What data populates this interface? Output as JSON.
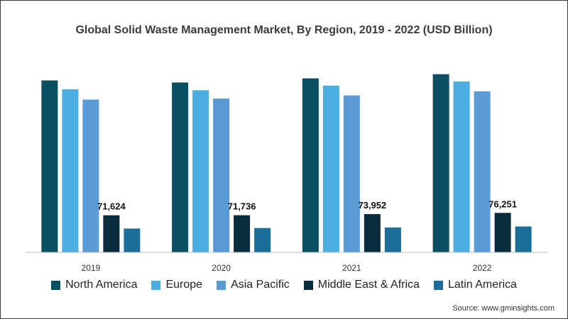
{
  "chart_data": {
    "type": "bar",
    "title": "Global Solid Waste Management Market, By Region, 2019 - 2022 (USD Billion)",
    "xlabel": "",
    "ylabel": "",
    "categories": [
      "2019",
      "2020",
      "2021",
      "2022"
    ],
    "series": [
      {
        "name": "North America",
        "color": "#0b4f63",
        "values": [
          332000,
          328000,
          336000,
          344000
        ]
      },
      {
        "name": "Europe",
        "color": "#4aaee0",
        "values": [
          315000,
          313000,
          322000,
          330000
        ]
      },
      {
        "name": "Asia Pacific",
        "color": "#5b9bd5",
        "values": [
          295000,
          297000,
          303000,
          311000
        ]
      },
      {
        "name": "Middle East & Africa",
        "color": "#0a2d3e",
        "values": [
          71624,
          71736,
          73952,
          76251
        ]
      },
      {
        "name": "Latin America",
        "color": "#1b6e99",
        "values": [
          46000,
          47000,
          48000,
          50000
        ]
      }
    ],
    "data_labels": [
      {
        "series": "Middle East & Africa",
        "category": "2019",
        "text": "71,624"
      },
      {
        "series": "Middle East & Africa",
        "category": "2020",
        "text": "71,736"
      },
      {
        "series": "Middle East & Africa",
        "category": "2021",
        "text": "73,952"
      },
      {
        "series": "Middle East & Africa",
        "category": "2022",
        "text": "76,251"
      }
    ],
    "ylim": [
      0,
      360000
    ],
    "grid": false,
    "legend_position": "bottom"
  },
  "source": "Source: www.gminsights.com"
}
